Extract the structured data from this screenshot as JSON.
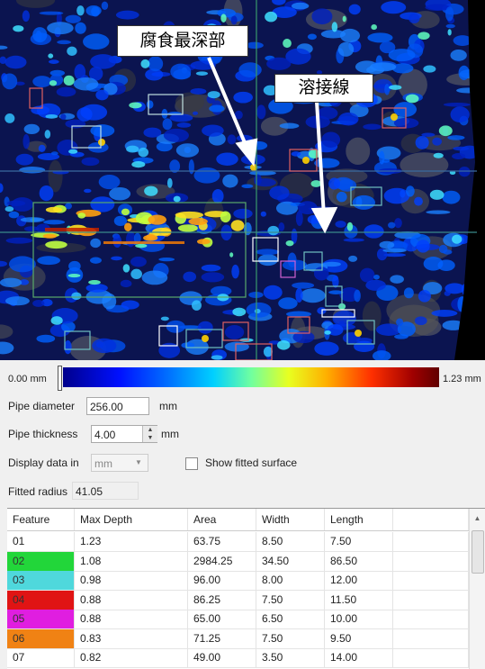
{
  "callouts": {
    "deepest": "腐食最深部",
    "weld": "溶接線"
  },
  "colorbar": {
    "min_label": "0.00 mm",
    "max_label": "1.23 mm"
  },
  "form": {
    "pipe_diameter": {
      "label": "Pipe diameter",
      "value": "256.00",
      "unit": "mm"
    },
    "pipe_thickness": {
      "label": "Pipe thickness",
      "value": "4.00",
      "unit": "mm"
    },
    "display_data": {
      "label": "Display data in",
      "value": "mm"
    },
    "show_fitted": {
      "label": "Show fitted surface"
    },
    "fitted_radius": {
      "label": "Fitted radius",
      "value": "41.05"
    }
  },
  "table": {
    "columns": [
      "Feature",
      "Max Depth",
      "Area",
      "Width",
      "Length"
    ],
    "rows": [
      [
        "01",
        "1.23",
        "63.75",
        "8.50",
        "7.50"
      ],
      [
        "02",
        "1.08",
        "2984.25",
        "34.50",
        "86.50"
      ],
      [
        "03",
        "0.98",
        "96.00",
        "8.00",
        "12.00"
      ],
      [
        "04",
        "0.88",
        "86.25",
        "7.50",
        "11.50"
      ],
      [
        "05",
        "0.88",
        "65.00",
        "6.50",
        "10.00"
      ],
      [
        "06",
        "0.83",
        "71.25",
        "7.50",
        "9.50"
      ],
      [
        "07",
        "0.82",
        "49.00",
        "3.50",
        "14.00"
      ]
    ]
  }
}
